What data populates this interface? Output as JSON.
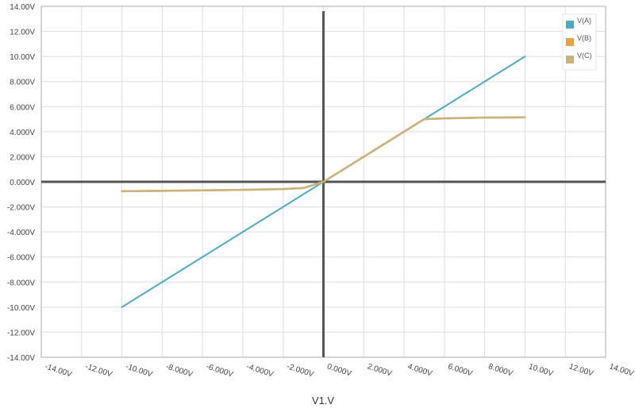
{
  "chart_data": {
    "type": "line",
    "title": "",
    "xlabel": "V1.V",
    "ylabel": "",
    "xlim": [
      -14,
      14
    ],
    "ylim": [
      -14,
      14
    ],
    "x_ticks": [
      -14,
      -12,
      -10,
      -8,
      -6,
      -4,
      -2,
      0,
      2,
      4,
      6,
      8,
      10,
      12,
      14
    ],
    "x_tick_labels": [
      "-14.00V",
      "-12.00V",
      "-10.00V",
      "-8.000V",
      "-6.000V",
      "-4.000V",
      "-2.000V",
      "0.000V",
      "2.000V",
      "4.000V",
      "6.000V",
      "8.000V",
      "10.00V",
      "12.00V",
      "14.00V"
    ],
    "y_ticks": [
      -14,
      -12,
      -10,
      -8,
      -6,
      -4,
      -2,
      0,
      2,
      4,
      6,
      8,
      10,
      12,
      14
    ],
    "y_tick_labels": [
      "-14.00V",
      "-12.00V",
      "-10.00V",
      "-8.000V",
      "-6.000V",
      "-4.000V",
      "-2.000V",
      "0.000V",
      "2.000V",
      "4.000V",
      "6.000V",
      "8.000V",
      "10.00V",
      "12.00V",
      "14.00V"
    ],
    "grid": true,
    "legend_position": "top-right",
    "legend": [
      "V(A)",
      "V(B)",
      "V(C)"
    ],
    "colors": {
      "grid": "#dddddd",
      "zero_axis": "#555555",
      "frame": "#aaaaaa"
    },
    "series": [
      {
        "name": "V(A)",
        "color": "#4bacc6",
        "x": [
          -10,
          10
        ],
        "y": [
          -10,
          10
        ]
      },
      {
        "name": "V(B)",
        "color": "#e8a33a",
        "x": [
          -10,
          -8,
          -6,
          -4,
          -2,
          -1,
          0,
          2,
          4,
          5,
          6,
          8,
          10
        ],
        "y": [
          -0.75,
          -0.72,
          -0.68,
          -0.64,
          -0.58,
          -0.5,
          0,
          2,
          4,
          5.0,
          5.06,
          5.12,
          5.15
        ]
      },
      {
        "name": "V(C)",
        "color": "#c9b27c",
        "x": [
          -10,
          -8,
          -6,
          -4,
          -2,
          -1,
          0,
          2,
          4,
          5,
          6,
          8,
          10
        ],
        "y": [
          -0.75,
          -0.72,
          -0.68,
          -0.64,
          -0.58,
          -0.5,
          0,
          2,
          4,
          5.0,
          5.06,
          5.12,
          5.15
        ]
      }
    ]
  }
}
